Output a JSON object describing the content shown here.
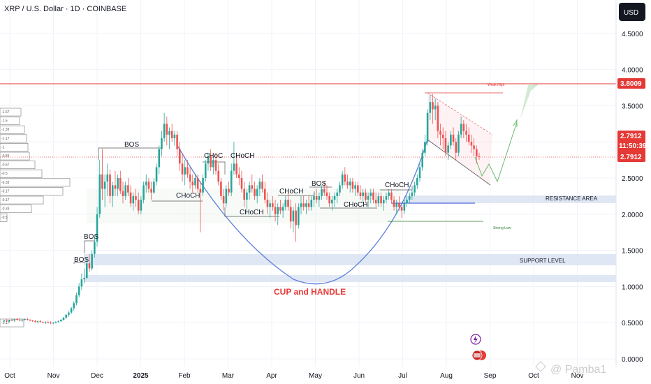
{
  "header": {
    "title": "XRP / U.S. Dollar · 1D · COINBASE",
    "currency_button": "USD"
  },
  "watermark": "@ Pamba1",
  "chart_data": {
    "type": "candlestick",
    "title": "XRP / U.S. Dollar · 1D · COINBASE",
    "ylim": [
      0,
      4.8
    ],
    "y_ticks": [
      "4.5000",
      "4.0000",
      "3.5000",
      "3.0000",
      "2.5000",
      "2.0000",
      "1.5000",
      "1.0000",
      "0.5000",
      "0.0000"
    ],
    "x_ticks": [
      "Oct",
      "Nov",
      "Dec",
      "2025",
      "Feb",
      "Mar",
      "Apr",
      "May",
      "Jun",
      "Jul",
      "Aug",
      "Sep",
      "Oct",
      "Nov"
    ],
    "price_tags": {
      "ath": "3.8009",
      "last": "2.7912",
      "countdown": "11:50:39",
      "current": "2.7912"
    },
    "colors": {
      "up": "#26a69a",
      "down": "#ef5350",
      "cup": "#5b7fdb",
      "resistance": "#1e3fd4",
      "ath_line": "#e53935"
    },
    "candles": [
      [
        0.52,
        0.54,
        0.5,
        0.53
      ],
      [
        0.53,
        0.55,
        0.51,
        0.52
      ],
      [
        0.52,
        0.54,
        0.5,
        0.54
      ],
      [
        0.54,
        0.56,
        0.52,
        0.53
      ],
      [
        0.53,
        0.55,
        0.51,
        0.55
      ],
      [
        0.55,
        0.57,
        0.53,
        0.54
      ],
      [
        0.54,
        0.56,
        0.52,
        0.53
      ],
      [
        0.53,
        0.55,
        0.51,
        0.54
      ],
      [
        0.54,
        0.56,
        0.53,
        0.55
      ],
      [
        0.55,
        0.57,
        0.53,
        0.54
      ],
      [
        0.54,
        0.55,
        0.52,
        0.53
      ],
      [
        0.53,
        0.54,
        0.51,
        0.52
      ],
      [
        0.52,
        0.54,
        0.5,
        0.51
      ],
      [
        0.51,
        0.53,
        0.49,
        0.52
      ],
      [
        0.52,
        0.54,
        0.5,
        0.51
      ],
      [
        0.51,
        0.52,
        0.49,
        0.5
      ],
      [
        0.5,
        0.52,
        0.48,
        0.51
      ],
      [
        0.51,
        0.53,
        0.49,
        0.5
      ],
      [
        0.5,
        0.52,
        0.48,
        0.49
      ],
      [
        0.49,
        0.51,
        0.48,
        0.5
      ],
      [
        0.5,
        0.52,
        0.49,
        0.51
      ],
      [
        0.51,
        0.53,
        0.5,
        0.52
      ],
      [
        0.52,
        0.55,
        0.51,
        0.54
      ],
      [
        0.54,
        0.58,
        0.53,
        0.57
      ],
      [
        0.57,
        0.62,
        0.55,
        0.61
      ],
      [
        0.61,
        0.66,
        0.58,
        0.64
      ],
      [
        0.64,
        0.72,
        0.62,
        0.7
      ],
      [
        0.7,
        0.8,
        0.66,
        0.77
      ],
      [
        0.77,
        0.92,
        0.74,
        0.88
      ],
      [
        0.88,
        1.05,
        0.85,
        1.0
      ],
      [
        1.0,
        1.18,
        0.95,
        1.1
      ],
      [
        1.1,
        1.25,
        1.05,
        1.12
      ],
      [
        1.12,
        1.4,
        1.1,
        1.32
      ],
      [
        1.32,
        1.45,
        1.2,
        1.25
      ],
      [
        1.25,
        1.5,
        1.22,
        1.45
      ],
      [
        1.45,
        1.7,
        1.4,
        1.62
      ],
      [
        1.62,
        2.1,
        1.55,
        2.0
      ],
      [
        2.0,
        2.75,
        1.95,
        2.55
      ],
      [
        2.55,
        2.9,
        2.2,
        2.35
      ],
      [
        2.35,
        2.55,
        2.1,
        2.45
      ],
      [
        2.45,
        2.7,
        2.25,
        2.55
      ],
      [
        2.55,
        2.62,
        2.15,
        2.25
      ],
      [
        2.25,
        2.45,
        2.1,
        2.4
      ],
      [
        2.4,
        2.6,
        2.25,
        2.35
      ],
      [
        2.35,
        2.55,
        2.25,
        2.5
      ],
      [
        2.5,
        2.6,
        2.28,
        2.32
      ],
      [
        2.32,
        2.45,
        2.15,
        2.25
      ],
      [
        2.25,
        2.45,
        2.2,
        2.4
      ],
      [
        2.4,
        2.5,
        2.25,
        2.3
      ],
      [
        2.3,
        2.4,
        2.1,
        2.15
      ],
      [
        2.15,
        2.3,
        2.05,
        2.25
      ],
      [
        2.25,
        2.35,
        2.1,
        2.2
      ],
      [
        2.2,
        2.3,
        2.0,
        2.05
      ],
      [
        2.05,
        2.25,
        2.0,
        2.2
      ],
      [
        2.2,
        2.45,
        2.15,
        2.4
      ],
      [
        2.4,
        2.55,
        2.3,
        2.45
      ],
      [
        2.45,
        2.5,
        2.3,
        2.35
      ],
      [
        2.35,
        2.45,
        2.2,
        2.3
      ],
      [
        2.3,
        2.5,
        2.28,
        2.45
      ],
      [
        2.45,
        2.7,
        2.4,
        2.65
      ],
      [
        2.65,
        2.95,
        2.55,
        2.9
      ],
      [
        2.9,
        3.15,
        2.8,
        3.05
      ],
      [
        3.05,
        3.4,
        3.0,
        3.25
      ],
      [
        3.25,
        3.35,
        2.95,
        3.1
      ],
      [
        3.1,
        3.2,
        2.9,
        3.15
      ],
      [
        3.15,
        3.25,
        3.0,
        3.05
      ],
      [
        3.05,
        3.15,
        2.95,
        3.1
      ],
      [
        3.1,
        3.15,
        2.8,
        2.9
      ],
      [
        2.9,
        3.0,
        2.6,
        2.7
      ],
      [
        2.7,
        2.85,
        2.45,
        2.55
      ],
      [
        2.55,
        2.75,
        2.4,
        2.65
      ],
      [
        2.65,
        2.75,
        2.5,
        2.55
      ],
      [
        2.55,
        2.65,
        2.35,
        2.45
      ],
      [
        2.45,
        2.55,
        2.3,
        2.4
      ],
      [
        2.4,
        2.55,
        2.35,
        2.5
      ],
      [
        2.5,
        2.55,
        2.3,
        2.35
      ],
      [
        2.35,
        2.45,
        1.75,
        2.3
      ],
      [
        2.3,
        2.55,
        2.25,
        2.5
      ],
      [
        2.5,
        2.75,
        2.45,
        2.7
      ],
      [
        2.7,
        2.85,
        2.6,
        2.8
      ],
      [
        2.8,
        2.9,
        2.6,
        2.65
      ],
      [
        2.65,
        2.8,
        2.55,
        2.75
      ],
      [
        2.75,
        2.85,
        2.55,
        2.6
      ],
      [
        2.6,
        2.7,
        2.4,
        2.45
      ],
      [
        2.45,
        2.5,
        2.2,
        2.25
      ],
      [
        2.25,
        2.35,
        2.05,
        2.15
      ],
      [
        2.15,
        2.4,
        2.1,
        2.35
      ],
      [
        2.35,
        2.45,
        2.25,
        2.3
      ],
      [
        2.3,
        2.7,
        2.25,
        2.6
      ],
      [
        2.6,
        3.0,
        2.55,
        2.7
      ],
      [
        2.7,
        2.85,
        2.5,
        2.55
      ],
      [
        2.55,
        2.65,
        2.4,
        2.5
      ],
      [
        2.5,
        2.6,
        2.3,
        2.35
      ],
      [
        2.35,
        2.45,
        2.1,
        2.2
      ],
      [
        2.2,
        2.35,
        2.0,
        2.3
      ],
      [
        2.3,
        2.45,
        2.2,
        2.4
      ],
      [
        2.4,
        2.55,
        2.3,
        2.35
      ],
      [
        2.35,
        2.45,
        2.2,
        2.25
      ],
      [
        2.25,
        2.4,
        2.15,
        2.35
      ],
      [
        2.35,
        2.5,
        2.25,
        2.45
      ],
      [
        2.45,
        2.55,
        2.3,
        2.35
      ],
      [
        2.35,
        2.45,
        2.15,
        2.2
      ],
      [
        2.2,
        2.3,
        2.0,
        2.1
      ],
      [
        2.1,
        2.2,
        1.95,
        2.15
      ],
      [
        2.15,
        2.25,
        2.05,
        2.1
      ],
      [
        2.1,
        2.2,
        1.9,
        2.0
      ],
      [
        2.0,
        2.15,
        1.85,
        2.1
      ],
      [
        2.1,
        2.2,
        2.0,
        2.05
      ],
      [
        2.05,
        2.15,
        1.95,
        2.1
      ],
      [
        2.1,
        2.25,
        2.05,
        2.2
      ],
      [
        2.2,
        2.3,
        2.05,
        2.1
      ],
      [
        2.1,
        2.2,
        1.8,
        1.9
      ],
      [
        1.9,
        2.1,
        1.75,
        2.05
      ],
      [
        2.05,
        2.15,
        1.62,
        1.85
      ],
      [
        1.85,
        2.15,
        1.8,
        2.1
      ],
      [
        2.1,
        2.25,
        2.0,
        2.15
      ],
      [
        2.15,
        2.25,
        2.05,
        2.1
      ],
      [
        2.1,
        2.2,
        2.0,
        2.15
      ],
      [
        2.15,
        2.25,
        2.05,
        2.1
      ],
      [
        2.1,
        2.25,
        2.05,
        2.2
      ],
      [
        2.2,
        2.3,
        2.1,
        2.25
      ],
      [
        2.25,
        2.35,
        2.15,
        2.2
      ],
      [
        2.2,
        2.3,
        2.1,
        2.25
      ],
      [
        2.25,
        2.4,
        2.2,
        2.35
      ],
      [
        2.35,
        2.45,
        2.25,
        2.3
      ],
      [
        2.3,
        2.4,
        2.2,
        2.25
      ],
      [
        2.25,
        2.3,
        2.1,
        2.15
      ],
      [
        2.15,
        2.25,
        2.05,
        2.2
      ],
      [
        2.2,
        2.3,
        2.1,
        2.25
      ],
      [
        2.25,
        2.35,
        2.15,
        2.3
      ],
      [
        2.3,
        2.45,
        2.25,
        2.4
      ],
      [
        2.4,
        2.6,
        2.35,
        2.55
      ],
      [
        2.55,
        2.65,
        2.4,
        2.45
      ],
      [
        2.45,
        2.55,
        2.35,
        2.4
      ],
      [
        2.4,
        2.5,
        2.3,
        2.45
      ],
      [
        2.45,
        2.5,
        2.3,
        2.35
      ],
      [
        2.35,
        2.45,
        2.25,
        2.4
      ],
      [
        2.4,
        2.45,
        2.25,
        2.3
      ],
      [
        2.3,
        2.4,
        2.2,
        2.25
      ],
      [
        2.25,
        2.35,
        2.15,
        2.3
      ],
      [
        2.3,
        2.35,
        2.15,
        2.2
      ],
      [
        2.2,
        2.3,
        2.1,
        2.25
      ],
      [
        2.25,
        2.35,
        2.15,
        2.3
      ],
      [
        2.3,
        2.35,
        2.15,
        2.2
      ],
      [
        2.2,
        2.3,
        2.1,
        2.15
      ],
      [
        2.15,
        2.3,
        2.1,
        2.25
      ],
      [
        2.25,
        2.3,
        2.1,
        2.15
      ],
      [
        2.15,
        2.25,
        2.05,
        2.2
      ],
      [
        2.2,
        2.3,
        2.15,
        2.25
      ],
      [
        2.25,
        2.35,
        2.2,
        2.3
      ],
      [
        2.3,
        2.35,
        2.15,
        2.2
      ],
      [
        2.2,
        2.25,
        2.05,
        2.1
      ],
      [
        2.1,
        2.2,
        2.0,
        2.15
      ],
      [
        2.15,
        2.25,
        2.05,
        2.1
      ],
      [
        2.1,
        2.15,
        1.95,
        2.05
      ],
      [
        2.05,
        2.2,
        2.0,
        2.15
      ],
      [
        2.15,
        2.25,
        2.1,
        2.2
      ],
      [
        2.2,
        2.3,
        2.15,
        2.25
      ],
      [
        2.25,
        2.35,
        2.2,
        2.3
      ],
      [
        2.3,
        2.45,
        2.25,
        2.4
      ],
      [
        2.4,
        2.55,
        2.35,
        2.5
      ],
      [
        2.5,
        2.7,
        2.45,
        2.65
      ],
      [
        2.65,
        2.9,
        2.6,
        2.85
      ],
      [
        2.85,
        3.1,
        2.8,
        3.0
      ],
      [
        3.0,
        3.45,
        2.95,
        3.4
      ],
      [
        3.4,
        3.65,
        3.3,
        3.55
      ],
      [
        3.55,
        3.66,
        3.25,
        3.45
      ],
      [
        3.45,
        3.6,
        3.3,
        3.5
      ],
      [
        3.5,
        3.55,
        3.05,
        3.15
      ],
      [
        3.15,
        3.25,
        2.95,
        3.1
      ],
      [
        3.1,
        3.2,
        2.9,
        3.05
      ],
      [
        3.05,
        3.15,
        2.8,
        2.85
      ],
      [
        2.85,
        3.0,
        2.75,
        2.95
      ],
      [
        2.95,
        3.15,
        2.9,
        3.1
      ],
      [
        3.1,
        3.2,
        2.95,
        3.0
      ],
      [
        3.0,
        3.05,
        2.75,
        2.85
      ],
      [
        2.85,
        3.15,
        2.8,
        3.1
      ],
      [
        3.1,
        3.35,
        3.05,
        3.25
      ],
      [
        3.25,
        3.3,
        3.05,
        3.15
      ],
      [
        3.15,
        3.25,
        3.0,
        3.1
      ],
      [
        3.1,
        3.2,
        2.95,
        3.0
      ],
      [
        3.0,
        3.1,
        2.85,
        2.95
      ],
      [
        2.95,
        3.05,
        2.8,
        2.9
      ],
      [
        2.9,
        2.95,
        2.7,
        2.8
      ],
      [
        2.8,
        2.85,
        2.75,
        2.79
      ]
    ]
  },
  "annotations": {
    "bos": [
      "BOS",
      "BOS",
      "BOS",
      "BOS"
    ],
    "choch": [
      "CHoCH",
      "CHoC",
      "CHoCH",
      "CHoCH",
      "CHoCH",
      "CHoCH",
      "CHoCH"
    ],
    "resistance": "RESISTANCE AREA",
    "support": "SUPPORT LEVEL",
    "cup": "CUP and HANDLE",
    "strong_low": "Strong Low",
    "weak_high": "Weak High"
  },
  "volume_profile": [
    {
      "label": "-1.67",
      "value": 0.3
    },
    {
      "label": "-1.5",
      "value": 0.28
    },
    {
      "label": "-1.33",
      "value": 0.35
    },
    {
      "label": "-1.17",
      "value": 0.38
    },
    {
      "label": "-1",
      "value": 0.4
    },
    {
      "label": "-0.83",
      "value": 0.42
    },
    {
      "label": "-0.67",
      "value": 0.5
    },
    {
      "label": "-0.5",
      "value": 0.6
    },
    {
      "label": "-0.33",
      "value": 1.0
    },
    {
      "label": "-0.17",
      "value": 0.9
    },
    {
      "label": "-0.17",
      "value": 0.62
    },
    {
      "label": "-0.33",
      "value": 0.45
    },
    {
      "label": "-0.5",
      "value": 0.1
    },
    {
      "label": "-2.17",
      "value": 0.34
    }
  ]
}
